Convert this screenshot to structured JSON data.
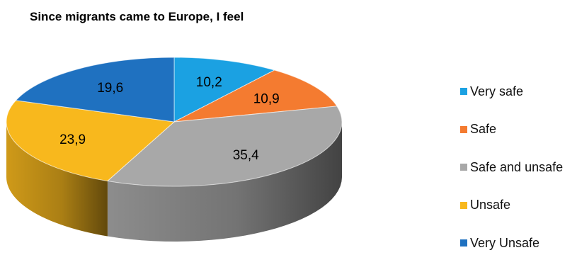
{
  "chart_data": {
    "type": "pie",
    "title": "Since migrants came to Europe, I feel",
    "categories": [
      "Very safe",
      "Safe",
      "Safe and unsafe",
      "Unsafe",
      "Very Unsafe"
    ],
    "values": [
      10.2,
      10.9,
      35.4,
      23.9,
      19.6
    ],
    "value_labels": [
      "10,2",
      "10,9",
      "35,4",
      "23,9",
      "19,6"
    ],
    "colors": [
      "#1ba1e2",
      "#f47b30",
      "#a8a8a8",
      "#f8b81d",
      "#1f71c0"
    ],
    "legend_position": "right",
    "style": "3d"
  }
}
